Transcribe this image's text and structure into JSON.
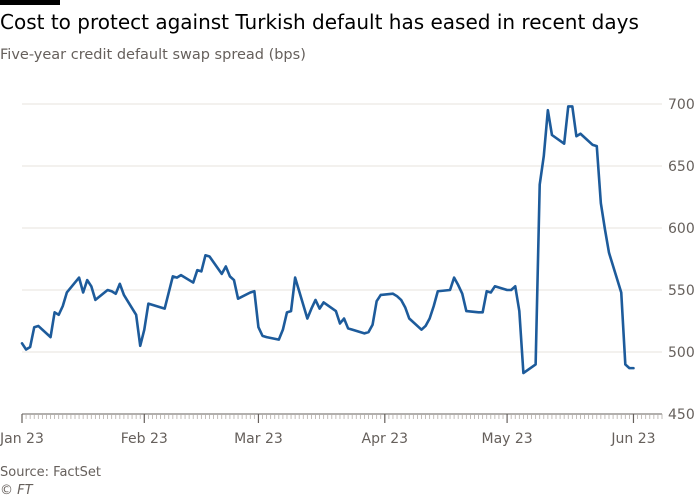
{
  "header": {
    "title": "Cost to protect against Turkish default has eased in recent days",
    "subtitle": "Five-year credit default swap spread (bps)"
  },
  "footer": {
    "source": "Source: FactSet",
    "credit": "© FT"
  },
  "colors": {
    "line": "#1d5b9b",
    "grid": "#e7e3de",
    "axis": "#66605c",
    "accent_bar": "#000000"
  },
  "chart_data": {
    "type": "line",
    "title": "Cost to protect against Turkish default has eased in recent days",
    "subtitle": "Five-year credit default swap spread (bps)",
    "xlabel": "",
    "ylabel": "",
    "ylim": [
      450,
      700
    ],
    "yticks": [
      450,
      500,
      550,
      600,
      650,
      700
    ],
    "y_axis_side": "right",
    "grid": true,
    "x_domain": [
      "2023-01-02",
      "2023-06-08"
    ],
    "xticks": [
      {
        "date": "2023-01-02",
        "label": "Jan 23"
      },
      {
        "date": "2023-02-01",
        "label": "Feb 23"
      },
      {
        "date": "2023-03-01",
        "label": "Mar 23"
      },
      {
        "date": "2023-04-01",
        "label": "Apr 23"
      },
      {
        "date": "2023-05-01",
        "label": "May 23"
      },
      {
        "date": "2023-06-01",
        "label": "Jun 23"
      }
    ],
    "series": [
      {
        "values": [
          [
            "2023-01-02",
            507
          ],
          [
            "2023-01-03",
            502
          ],
          [
            "2023-01-04",
            504
          ],
          [
            "2023-01-05",
            520
          ],
          [
            "2023-01-06",
            521
          ],
          [
            "2023-01-09",
            512
          ],
          [
            "2023-01-10",
            532
          ],
          [
            "2023-01-11",
            530
          ],
          [
            "2023-01-12",
            537
          ],
          [
            "2023-01-13",
            548
          ],
          [
            "2023-01-16",
            560
          ],
          [
            "2023-01-17",
            548
          ],
          [
            "2023-01-18",
            558
          ],
          [
            "2023-01-19",
            553
          ],
          [
            "2023-01-20",
            542
          ],
          [
            "2023-01-23",
            550
          ],
          [
            "2023-01-24",
            549
          ],
          [
            "2023-01-25",
            547
          ],
          [
            "2023-01-26",
            555
          ],
          [
            "2023-01-27",
            546
          ],
          [
            "2023-01-30",
            530
          ],
          [
            "2023-01-31",
            505
          ],
          [
            "2023-02-01",
            518
          ],
          [
            "2023-02-02",
            539
          ],
          [
            "2023-02-03",
            538
          ],
          [
            "2023-02-06",
            535
          ],
          [
            "2023-02-07",
            548
          ],
          [
            "2023-02-08",
            561
          ],
          [
            "2023-02-09",
            560
          ],
          [
            "2023-02-10",
            562
          ],
          [
            "2023-02-13",
            556
          ],
          [
            "2023-02-14",
            566
          ],
          [
            "2023-02-15",
            565
          ],
          [
            "2023-02-16",
            578
          ],
          [
            "2023-02-17",
            577
          ],
          [
            "2023-02-20",
            563
          ],
          [
            "2023-02-21",
            569
          ],
          [
            "2023-02-22",
            561
          ],
          [
            "2023-02-23",
            558
          ],
          [
            "2023-02-24",
            543
          ],
          [
            "2023-02-27",
            548
          ],
          [
            "2023-02-28",
            549
          ],
          [
            "2023-03-01",
            520
          ],
          [
            "2023-03-02",
            513
          ],
          [
            "2023-03-03",
            512
          ],
          [
            "2023-03-06",
            510
          ],
          [
            "2023-03-07",
            518
          ],
          [
            "2023-03-08",
            532
          ],
          [
            "2023-03-09",
            533
          ],
          [
            "2023-03-10",
            560
          ],
          [
            "2023-03-13",
            527
          ],
          [
            "2023-03-14",
            535
          ],
          [
            "2023-03-15",
            542
          ],
          [
            "2023-03-16",
            535
          ],
          [
            "2023-03-17",
            540
          ],
          [
            "2023-03-20",
            533
          ],
          [
            "2023-03-21",
            523
          ],
          [
            "2023-03-22",
            527
          ],
          [
            "2023-03-23",
            519
          ],
          [
            "2023-03-24",
            518
          ],
          [
            "2023-03-27",
            515
          ],
          [
            "2023-03-28",
            516
          ],
          [
            "2023-03-29",
            522
          ],
          [
            "2023-03-30",
            541
          ],
          [
            "2023-03-31",
            546
          ],
          [
            "2023-04-03",
            547
          ],
          [
            "2023-04-04",
            545
          ],
          [
            "2023-04-05",
            542
          ],
          [
            "2023-04-06",
            536
          ],
          [
            "2023-04-07",
            527
          ],
          [
            "2023-04-10",
            518
          ],
          [
            "2023-04-11",
            521
          ],
          [
            "2023-04-12",
            527
          ],
          [
            "2023-04-13",
            537
          ],
          [
            "2023-04-14",
            549
          ],
          [
            "2023-04-17",
            550
          ],
          [
            "2023-04-18",
            560
          ],
          [
            "2023-04-19",
            554
          ],
          [
            "2023-04-20",
            547
          ],
          [
            "2023-04-21",
            533
          ],
          [
            "2023-04-24",
            532
          ],
          [
            "2023-04-25",
            532
          ],
          [
            "2023-04-26",
            549
          ],
          [
            "2023-04-27",
            548
          ],
          [
            "2023-04-28",
            553
          ],
          [
            "2023-05-01",
            550
          ],
          [
            "2023-05-02",
            550
          ],
          [
            "2023-05-03",
            553
          ],
          [
            "2023-05-04",
            533
          ],
          [
            "2023-05-05",
            483
          ],
          [
            "2023-05-08",
            490
          ],
          [
            "2023-05-09",
            635
          ],
          [
            "2023-05-10",
            658
          ],
          [
            "2023-05-11",
            695
          ],
          [
            "2023-05-12",
            675
          ],
          [
            "2023-05-15",
            668
          ],
          [
            "2023-05-16",
            698
          ],
          [
            "2023-05-17",
            698
          ],
          [
            "2023-05-18",
            674
          ],
          [
            "2023-05-19",
            676
          ],
          [
            "2023-05-22",
            667
          ],
          [
            "2023-05-23",
            666
          ],
          [
            "2023-05-24",
            620
          ],
          [
            "2023-05-25",
            599
          ],
          [
            "2023-05-26",
            580
          ],
          [
            "2023-05-29",
            548
          ],
          [
            "2023-05-30",
            490
          ],
          [
            "2023-05-31",
            487
          ],
          [
            "2023-06-01",
            487
          ]
        ]
      }
    ]
  }
}
